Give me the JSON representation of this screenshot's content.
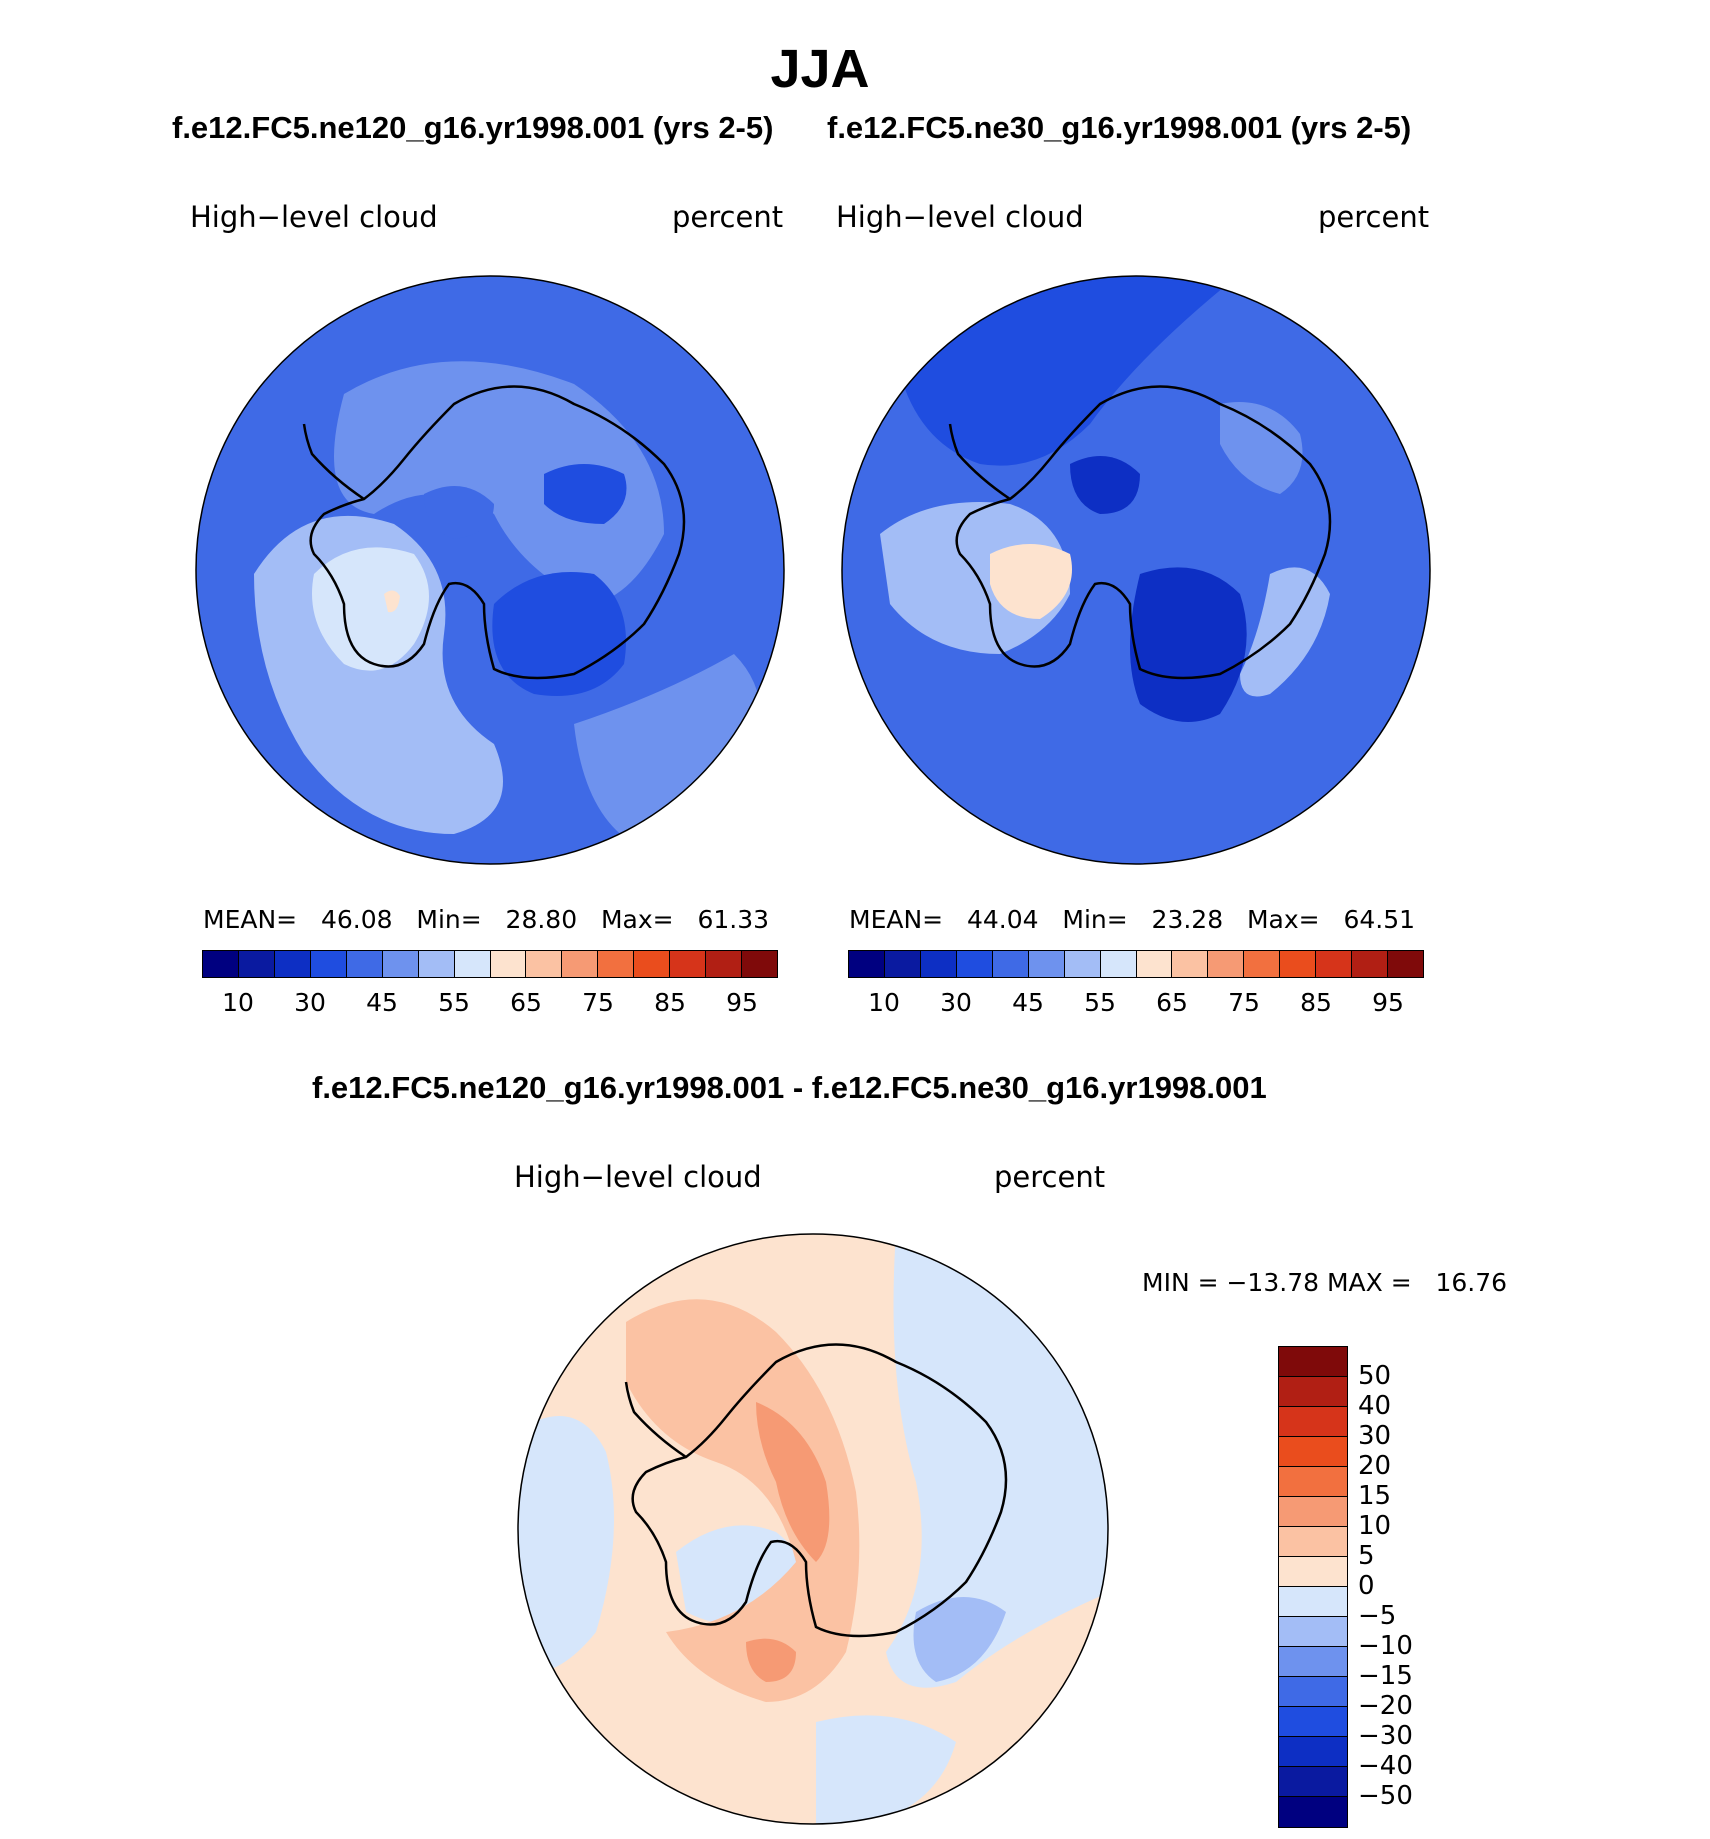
{
  "title": "JJA",
  "top_panels": [
    {
      "case_title": "f.e12.FC5.ne120_g16.yr1998.001 (yrs 2-5)",
      "variable": "High−level cloud",
      "units": "percent",
      "stats": {
        "mean_label": "MEAN=",
        "mean": "46.08",
        "min_label": "Min=",
        "min": "28.80",
        "max_label": "Max=",
        "max": "61.33"
      }
    },
    {
      "case_title": "f.e12.FC5.ne30_g16.yr1998.001 (yrs 2-5)",
      "variable": "High−level cloud",
      "units": "percent",
      "stats": {
        "mean_label": "MEAN=",
        "mean": "44.04",
        "min_label": "Min=",
        "min": "23.28",
        "max_label": "Max=",
        "max": "64.51"
      }
    }
  ],
  "top_colorbar": {
    "colors": [
      "#000080",
      "#0a1aa0",
      "#0d2fc4",
      "#1f4de0",
      "#3f6ae6",
      "#6e92ee",
      "#a3bdf6",
      "#d6e6fb",
      "#fde3cf",
      "#fbc2a3",
      "#f69a74",
      "#f2703f",
      "#ea4d1d",
      "#d6341a",
      "#b11f14",
      "#7f0a0a"
    ],
    "ticks": [
      "10",
      "30",
      "45",
      "55",
      "65",
      "75",
      "85",
      "95"
    ]
  },
  "diff_panel": {
    "title": "f.e12.FC5.ne120_g16.yr1998.001 - f.e12.FC5.ne30_g16.yr1998.001",
    "variable": "High−level cloud",
    "units": "percent",
    "minmax": "MIN = −13.78 MAX =   16.76"
  },
  "diff_colorbar": {
    "colors": [
      "#7f0a0a",
      "#b11f14",
      "#d6341a",
      "#ea4d1d",
      "#f2703f",
      "#f69a74",
      "#fbc2a3",
      "#fde3cf",
      "#d6e6fb",
      "#a3bdf6",
      "#6e92ee",
      "#3f6ae6",
      "#1f4de0",
      "#0d2fc4",
      "#0a1aa0",
      "#000080"
    ],
    "ticks": [
      "50",
      "40",
      "30",
      "20",
      "15",
      "10",
      "5",
      "0",
      "−5",
      "−10",
      "−15",
      "−20",
      "−30",
      "−40",
      "−50"
    ]
  }
}
